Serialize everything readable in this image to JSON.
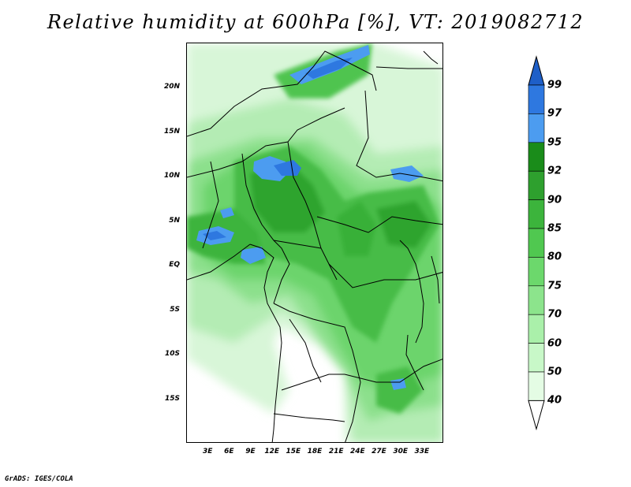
{
  "title": "Relative humidity at 600hPa [%], VT: 2019082712",
  "credit": "GrADS: IGES/COLA",
  "map": {
    "projection": "latlon",
    "lon_range": [
      0,
      36
    ],
    "lat_range": [
      -20,
      25
    ],
    "lat_ticks": [
      {
        "value": 20,
        "label": "20N"
      },
      {
        "value": 15,
        "label": "15N"
      },
      {
        "value": 10,
        "label": "10N"
      },
      {
        "value": 5,
        "label": "5N"
      },
      {
        "value": 0,
        "label": "EQ"
      },
      {
        "value": -5,
        "label": "5S"
      },
      {
        "value": -10,
        "label": "10S"
      },
      {
        "value": -15,
        "label": "15S"
      }
    ],
    "lon_ticks": [
      {
        "value": 3,
        "label": "3E"
      },
      {
        "value": 6,
        "label": "6E"
      },
      {
        "value": 9,
        "label": "9E"
      },
      {
        "value": 12,
        "label": "12E"
      },
      {
        "value": 15,
        "label": "15E"
      },
      {
        "value": 18,
        "label": "18E"
      },
      {
        "value": 21,
        "label": "21E"
      },
      {
        "value": 24,
        "label": "24E"
      },
      {
        "value": 27,
        "label": "27E"
      },
      {
        "value": 30,
        "label": "30E"
      },
      {
        "value": 33,
        "label": "33E"
      }
    ]
  },
  "colorbar": {
    "labels": [
      "99",
      "97",
      "95",
      "92",
      "90",
      "85",
      "80",
      "75",
      "70",
      "60",
      "50",
      "40"
    ],
    "colors": [
      "#1e5fc8",
      "#2e78e0",
      "#4c9cf0",
      "#1a8c1a",
      "#2ea02e",
      "#3cb43c",
      "#50c850",
      "#6cd86c",
      "#8ce48c",
      "#aaf0aa",
      "#c8f8c8",
      "#e4fce4",
      "#ffffff"
    ]
  }
}
